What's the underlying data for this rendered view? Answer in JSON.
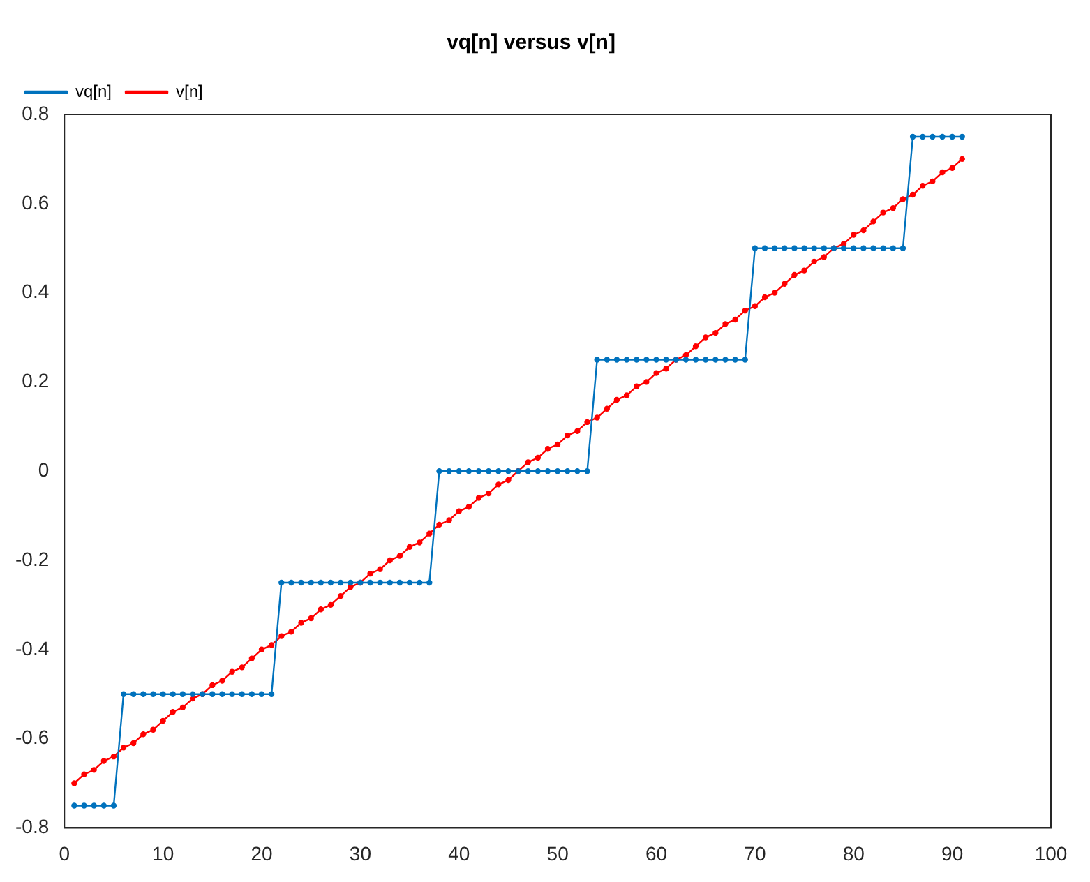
{
  "chart_data": {
    "type": "line",
    "title": "vq[n] versus v[n]",
    "x": [
      1,
      2,
      3,
      4,
      5,
      6,
      7,
      8,
      9,
      10,
      11,
      12,
      13,
      14,
      15,
      16,
      17,
      18,
      19,
      20,
      21,
      22,
      23,
      24,
      25,
      26,
      27,
      28,
      29,
      30,
      31,
      32,
      33,
      34,
      35,
      36,
      37,
      38,
      39,
      40,
      41,
      42,
      43,
      44,
      45,
      46,
      47,
      48,
      49,
      50,
      51,
      52,
      53,
      54,
      55,
      56,
      57,
      58,
      59,
      60,
      61,
      62,
      63,
      64,
      65,
      66,
      67,
      68,
      69,
      70,
      71,
      72,
      73,
      74,
      75,
      76,
      77,
      78,
      79,
      80,
      81,
      82,
      83,
      84,
      85,
      86,
      87,
      88,
      89,
      90,
      91
    ],
    "series": [
      {
        "name": "vq[n]",
        "color": "#0072bd",
        "values": [
          -0.75,
          -0.75,
          -0.75,
          -0.75,
          -0.75,
          -0.5,
          -0.5,
          -0.5,
          -0.5,
          -0.5,
          -0.5,
          -0.5,
          -0.5,
          -0.5,
          -0.5,
          -0.5,
          -0.5,
          -0.5,
          -0.5,
          -0.5,
          -0.5,
          -0.25,
          -0.25,
          -0.25,
          -0.25,
          -0.25,
          -0.25,
          -0.25,
          -0.25,
          -0.25,
          -0.25,
          -0.25,
          -0.25,
          -0.25,
          -0.25,
          -0.25,
          -0.25,
          0,
          0,
          0,
          0,
          0,
          0,
          0,
          0,
          0,
          0,
          0,
          0,
          0,
          0,
          0,
          0,
          0.25,
          0.25,
          0.25,
          0.25,
          0.25,
          0.25,
          0.25,
          0.25,
          0.25,
          0.25,
          0.25,
          0.25,
          0.25,
          0.25,
          0.25,
          0.25,
          0.5,
          0.5,
          0.5,
          0.5,
          0.5,
          0.5,
          0.5,
          0.5,
          0.5,
          0.5,
          0.5,
          0.5,
          0.5,
          0.5,
          0.5,
          0.5,
          0.75,
          0.75,
          0.75,
          0.75,
          0.75,
          0.75
        ]
      },
      {
        "name": "v[n]",
        "color": "#ff0000",
        "values": [
          -0.7,
          -0.68,
          -0.67,
          -0.65,
          -0.64,
          -0.62,
          -0.61,
          -0.59,
          -0.58,
          -0.56,
          -0.54,
          -0.53,
          -0.51,
          -0.5,
          -0.48,
          -0.47,
          -0.45,
          -0.44,
          -0.42,
          -0.4,
          -0.39,
          -0.37,
          -0.36,
          -0.34,
          -0.33,
          -0.31,
          -0.3,
          -0.28,
          -0.26,
          -0.25,
          -0.23,
          -0.22,
          -0.2,
          -0.19,
          -0.17,
          -0.16,
          -0.14,
          -0.12,
          -0.11,
          -0.09,
          -0.08,
          -0.06,
          -0.05,
          -0.03,
          -0.02,
          0,
          0.02,
          0.03,
          0.05,
          0.06,
          0.08,
          0.09,
          0.11,
          0.12,
          0.14,
          0.16,
          0.17,
          0.19,
          0.2,
          0.22,
          0.23,
          0.25,
          0.26,
          0.28,
          0.3,
          0.31,
          0.33,
          0.34,
          0.36,
          0.37,
          0.39,
          0.4,
          0.42,
          0.44,
          0.45,
          0.47,
          0.48,
          0.5,
          0.51,
          0.53,
          0.54,
          0.56,
          0.58,
          0.59,
          0.61,
          0.62,
          0.64,
          0.65,
          0.67,
          0.68,
          0.7
        ]
      }
    ],
    "xlim": [
      0,
      100
    ],
    "xticks": [
      0,
      10,
      20,
      30,
      40,
      50,
      60,
      70,
      80,
      90,
      100
    ],
    "ylim": [
      -0.8,
      0.8
    ],
    "yticks": [
      -0.8,
      -0.6,
      -0.4,
      -0.2,
      0,
      0.2,
      0.4,
      0.6,
      0.8
    ],
    "grid": false,
    "legend": "top left",
    "marker": "circle",
    "line_style": "solid"
  }
}
